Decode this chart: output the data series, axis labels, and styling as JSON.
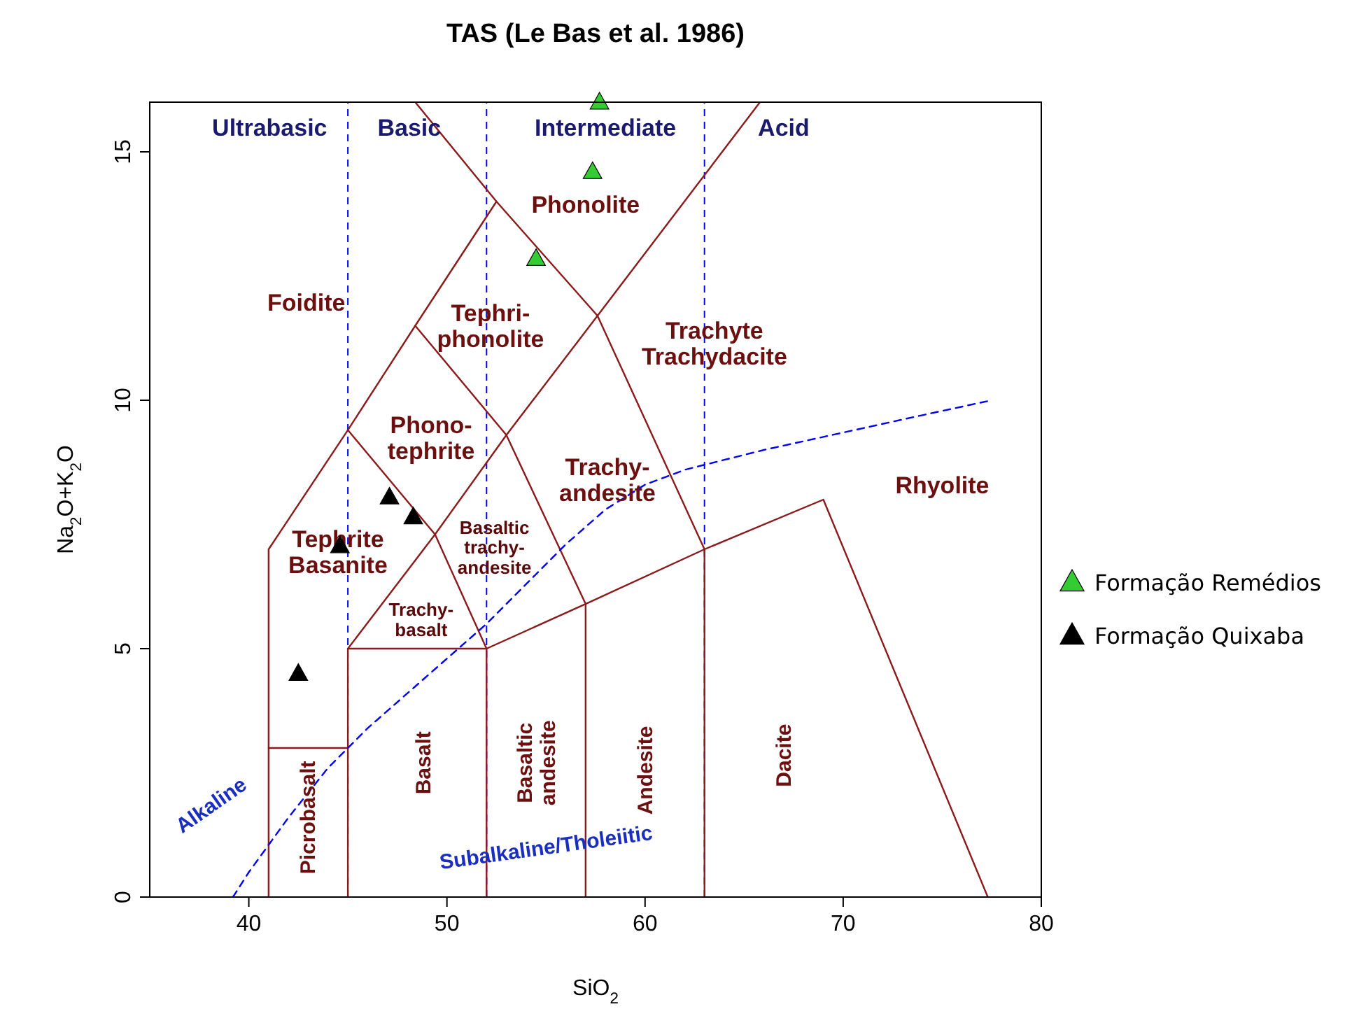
{
  "chart_data": {
    "type": "scatter",
    "title": "TAS (Le Bas et al. 1986)",
    "xlabel": "SiO$_{2}$",
    "ylabel": "Na$_{2}$O+K$_{2}$O",
    "xlim": [
      35,
      80
    ],
    "xticks": [
      40,
      50,
      60,
      70,
      80
    ],
    "ylim": [
      0,
      16
    ],
    "yticks": [
      0,
      5,
      10,
      15
    ],
    "grid": false,
    "legend": "right",
    "marker": "triangle",
    "series": [
      {
        "type": "line",
        "color": "#8b1a1a",
        "line_style": "solid",
        "marker": "none",
        "x": [
          41,
          41,
          45,
          48.4,
          52.5,
          48.4
        ],
        "values": [
          0,
          7,
          9.4,
          11.5,
          14,
          16
        ]
      },
      {
        "type": "line",
        "color": "#8b1a1a",
        "line_style": "solid",
        "marker": "none",
        "x": [
          41,
          45
        ],
        "values": [
          3,
          3
        ]
      },
      {
        "type": "line",
        "color": "#8b1a1a",
        "line_style": "solid",
        "marker": "none",
        "x": [
          45,
          45,
          52,
          52
        ],
        "values": [
          0,
          5,
          5,
          0
        ]
      },
      {
        "type": "line",
        "color": "#8b1a1a",
        "line_style": "solid",
        "marker": "none",
        "x": [
          45,
          49.4,
          53,
          57.6,
          63,
          63
        ],
        "values": [
          5,
          7.3,
          9.3,
          11.7,
          7,
          0
        ]
      },
      {
        "type": "line",
        "color": "#8b1a1a",
        "line_style": "solid",
        "marker": "none",
        "x": [
          45,
          49.4,
          52,
          57,
          63,
          69,
          77.3
        ],
        "values": [
          9.4,
          7.3,
          5,
          5.9,
          7,
          8,
          0
        ]
      },
      {
        "type": "line",
        "color": "#8b1a1a",
        "line_style": "solid",
        "marker": "none",
        "x": [
          57,
          57,
          53,
          48.4
        ],
        "values": [
          0,
          5.9,
          9.3,
          11.5
        ]
      },
      {
        "type": "line",
        "color": "#8b1a1a",
        "line_style": "solid",
        "marker": "none",
        "x": [
          52.5,
          57.6,
          65.8
        ],
        "values": [
          14,
          11.7,
          16
        ]
      },
      {
        "type": "line",
        "color": "#0000ff",
        "line_style": "dashed",
        "marker": "none",
        "x": [
          39.2,
          40,
          42,
          44,
          46,
          48,
          50,
          52,
          54,
          56,
          58,
          60,
          62,
          64,
          66,
          70,
          74,
          77.5
        ],
        "values": [
          0,
          0.5,
          1.6,
          2.6,
          3.4,
          4.1,
          4.8,
          5.5,
          6.3,
          7.1,
          7.8,
          8.3,
          8.6,
          8.8,
          9.0,
          9.35,
          9.7,
          10.0
        ]
      },
      {
        "name": "Formação Remédios",
        "color": "#33cc33",
        "x": [
          57.7,
          57.35,
          54.5
        ],
        "values": [
          16,
          14.6,
          12.85
        ]
      },
      {
        "name": "Formação Quixaba",
        "color": "#000000",
        "x": [
          47.1,
          48.3,
          44.6,
          42.5
        ],
        "values": [
          8.05,
          7.65,
          7.07,
          4.5
        ]
      }
    ],
    "ref_lines": [
      {
        "axis": "x",
        "value": 45,
        "color": "#0000ff",
        "line_style": "dashed"
      },
      {
        "axis": "x",
        "value": 52,
        "color": "#0000ff",
        "line_style": "dashed"
      },
      {
        "axis": "x",
        "value": 63,
        "color": "#0000ff",
        "line_style": "dashed"
      }
    ],
    "annotations": [
      "Ultrabasic",
      "Basic",
      "Intermediate",
      "Acid",
      "Phonolite",
      "Foidite",
      "Tephri-\nphonolite",
      "Trachyte\nTrachydacite",
      "Phono-\ntephrite",
      "Trachy-\nandesite",
      "Rhyolite",
      "Tephrite\nBasanite",
      "Basaltic\ntrachy-\nandesite",
      "Trachy-\nbasalt",
      "Picrobasalt",
      "Basalt",
      "Basaltic\nandesite",
      "Andesite",
      "Dacite",
      "Alkaline",
      "Subalkaline/Tholeiitic"
    ]
  }
}
